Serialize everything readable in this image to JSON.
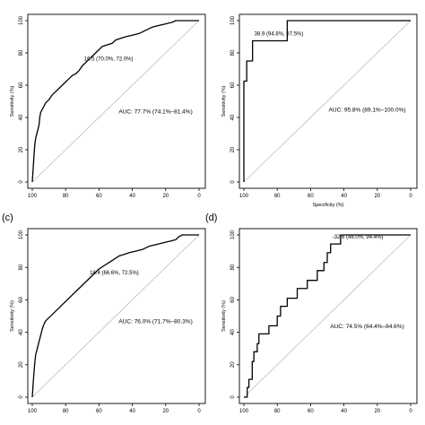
{
  "chart_data": [
    {
      "type": "line",
      "panel_label": "",
      "xlabel": "",
      "ylabel": "Sensitivity (%)",
      "x_reversed": true,
      "xlim": [
        100,
        0
      ],
      "ylim": [
        0,
        100
      ],
      "xticks": [
        "100",
        "80",
        "60",
        "40",
        "20",
        "0"
      ],
      "yticks": [
        "0",
        "20",
        "40",
        "60",
        "80",
        "100"
      ],
      "cutoff_label": "16.5 (70.0%, 72.0%)",
      "cutoff_point": {
        "x": 70.0,
        "y": 72.0
      },
      "auc_label": "AUC: 77.7% (74.1%–81.4%)",
      "series": [
        {
          "points": [
            [
              100,
              0
            ],
            [
              99.5,
              8
            ],
            [
              99,
              16
            ],
            [
              98.5,
              23
            ],
            [
              98,
              27
            ],
            [
              97,
              31
            ],
            [
              96,
              35
            ],
            [
              95.5,
              40
            ],
            [
              95,
              43
            ],
            [
              94,
              45
            ],
            [
              93,
              47
            ],
            [
              92,
              49
            ],
            [
              90,
              51
            ],
            [
              88,
              54
            ],
            [
              86,
              56
            ],
            [
              84,
              58
            ],
            [
              82,
              60
            ],
            [
              80,
              62
            ],
            [
              78,
              64
            ],
            [
              76,
              66
            ],
            [
              74,
              67
            ],
            [
              72,
              69
            ],
            [
              70,
              72
            ],
            [
              68,
              74
            ],
            [
              66,
              76
            ],
            [
              64,
              78
            ],
            [
              62,
              80
            ],
            [
              60,
              82
            ],
            [
              58,
              84
            ],
            [
              55,
              85
            ],
            [
              52,
              86
            ],
            [
              50,
              88
            ],
            [
              47,
              89
            ],
            [
              44,
              90
            ],
            [
              40,
              91
            ],
            [
              36,
              92
            ],
            [
              32,
              94
            ],
            [
              28,
              96
            ],
            [
              24,
              97
            ],
            [
              20,
              98
            ],
            [
              16,
              99
            ],
            [
              14,
              100
            ],
            [
              0,
              100
            ]
          ]
        }
      ]
    },
    {
      "type": "line",
      "panel_label": "",
      "xlabel": "Specificity (%)",
      "ylabel": "Sensitivity (%)",
      "x_reversed": true,
      "xlim": [
        100,
        0
      ],
      "ylim": [
        0,
        100
      ],
      "xticks": [
        "100",
        "80",
        "60",
        "40",
        "20",
        "0"
      ],
      "yticks": [
        "0",
        "20",
        "40",
        "60",
        "80",
        "100"
      ],
      "cutoff_label": "38.9 (94.8%, 87.5%)",
      "cutoff_point": {
        "x": 94.8,
        "y": 87.5
      },
      "auc_label": "AUC: 95.8% (89.1%–100.0%)",
      "series": [
        {
          "points": [
            [
              100,
              0
            ],
            [
              100,
              62.5
            ],
            [
              98.3,
              62.5
            ],
            [
              98.3,
              75
            ],
            [
              94.8,
              75
            ],
            [
              94.8,
              87.5
            ],
            [
              74,
              87.5
            ],
            [
              74,
              100
            ],
            [
              0,
              100
            ]
          ]
        }
      ]
    },
    {
      "type": "line",
      "panel_label": "(c)",
      "xlabel": "",
      "ylabel": "Sensitivity (%)",
      "x_reversed": true,
      "xlim": [
        100,
        0
      ],
      "ylim": [
        0,
        100
      ],
      "xticks": [
        "100",
        "80",
        "60",
        "40",
        "20",
        "0"
      ],
      "yticks": [
        "0",
        "20",
        "40",
        "60",
        "80",
        "100"
      ],
      "cutoff_label": "16.4 (66.6%, 72.5%)",
      "cutoff_point": {
        "x": 66.6,
        "y": 72.5
      },
      "auc_label": "AUC: 76.0% (71.7%–80.3%)",
      "series": [
        {
          "points": [
            [
              100,
              0
            ],
            [
              99.5,
              8
            ],
            [
              99,
              15
            ],
            [
              98.5,
              21
            ],
            [
              98,
              26
            ],
            [
              97,
              30
            ],
            [
              96,
              34
            ],
            [
              95,
              38
            ],
            [
              94,
              42
            ],
            [
              93,
              45
            ],
            [
              92,
              47
            ],
            [
              90,
              49
            ],
            [
              88,
              51
            ],
            [
              86,
              53
            ],
            [
              84,
              55
            ],
            [
              82,
              57
            ],
            [
              80,
              59
            ],
            [
              78,
              61
            ],
            [
              76,
              63
            ],
            [
              74,
              65
            ],
            [
              72,
              67
            ],
            [
              70,
              69
            ],
            [
              68,
              71
            ],
            [
              66,
              73
            ],
            [
              64,
              75
            ],
            [
              62,
              77
            ],
            [
              60,
              79
            ],
            [
              57,
              81
            ],
            [
              54,
              83
            ],
            [
              51,
              85
            ],
            [
              48,
              87
            ],
            [
              45,
              88
            ],
            [
              42,
              89
            ],
            [
              38,
              90
            ],
            [
              34,
              91
            ],
            [
              30,
              93
            ],
            [
              26,
              94
            ],
            [
              22,
              95
            ],
            [
              18,
              96
            ],
            [
              14,
              97
            ],
            [
              12,
              99
            ],
            [
              10,
              100
            ],
            [
              0,
              100
            ]
          ]
        }
      ]
    },
    {
      "type": "line",
      "panel_label": "(d)",
      "xlabel": "",
      "ylabel": "Sensitivity (%)",
      "x_reversed": true,
      "xlim": [
        100,
        0
      ],
      "ylim": [
        0,
        100
      ],
      "xticks": [
        "100",
        "80",
        "60",
        "40",
        "20",
        "0"
      ],
      "yticks": [
        "0",
        "20",
        "40",
        "60",
        "80",
        "100"
      ],
      "cutoff_label": "-32.6 (48.0%, 94.4%)",
      "cutoff_point": {
        "x": 48.0,
        "y": 94.4
      },
      "auc_label": "AUC: 74.5% (64.4%–84.6%)",
      "series": [
        {
          "points": [
            [
              100,
              0
            ],
            [
              98,
              0
            ],
            [
              98,
              6
            ],
            [
              97,
              6
            ],
            [
              97,
              11
            ],
            [
              95,
              11
            ],
            [
              95,
              22
            ],
            [
              94,
              22
            ],
            [
              94,
              28
            ],
            [
              92,
              28
            ],
            [
              92,
              33
            ],
            [
              91,
              33
            ],
            [
              91,
              39
            ],
            [
              85,
              39
            ],
            [
              85,
              44
            ],
            [
              80,
              44
            ],
            [
              80,
              50
            ],
            [
              78,
              50
            ],
            [
              78,
              56
            ],
            [
              74,
              56
            ],
            [
              74,
              61
            ],
            [
              68,
              61
            ],
            [
              68,
              67
            ],
            [
              62,
              67
            ],
            [
              62,
              72
            ],
            [
              56,
              72
            ],
            [
              56,
              78
            ],
            [
              52,
              78
            ],
            [
              52,
              83
            ],
            [
              50,
              83
            ],
            [
              50,
              89
            ],
            [
              48,
              89
            ],
            [
              48,
              94.4
            ],
            [
              42,
              94.4
            ],
            [
              42,
              100
            ],
            [
              0,
              100
            ]
          ]
        }
      ]
    }
  ]
}
